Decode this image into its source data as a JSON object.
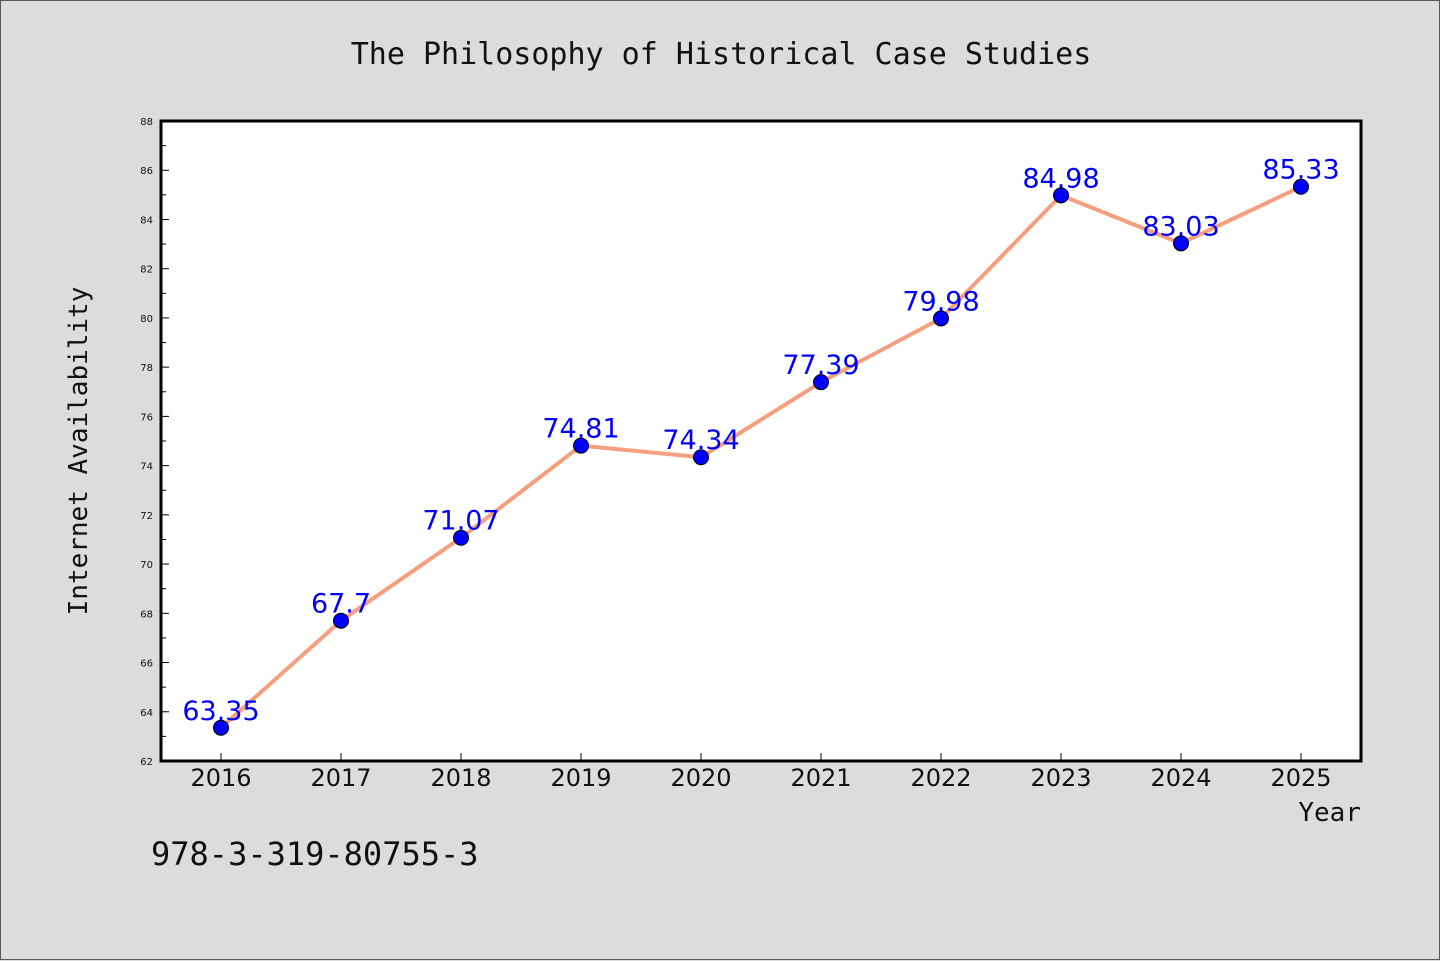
{
  "footer": {
    "isbn": "978-3-319-80755-3"
  },
  "colors": {
    "line": "#f4a07f",
    "marker": "#0000ff",
    "label": "#0000ff",
    "background": "#dcdcdc",
    "plot_bg": "#ffffff"
  },
  "chart_data": {
    "type": "line",
    "title": "The Philosophy of Historical Case Studies",
    "xlabel": "Year",
    "ylabel": "Internet Availability",
    "categories": [
      "2016",
      "2017",
      "2018",
      "2019",
      "2020",
      "2021",
      "2022",
      "2023",
      "2024",
      "2025"
    ],
    "series": [
      {
        "values": [
          63.35,
          67.7,
          71.07,
          74.81,
          74.34,
          77.39,
          79.98,
          84.98,
          83.03,
          85.33
        ],
        "labels": [
          "63.35",
          "67.7",
          "71.07",
          "74.81",
          "74.34",
          "77.39",
          "79.98",
          "84.98",
          "83.03",
          "85.33"
        ]
      }
    ],
    "ylim": [
      62,
      88
    ],
    "yticks": [
      62,
      64,
      66,
      68,
      70,
      72,
      74,
      76,
      78,
      80,
      82,
      84,
      86,
      88
    ],
    "ytick_labels": [
      "62",
      "64",
      "66",
      "68",
      "70",
      "72",
      "74",
      "76",
      "78",
      "80",
      "82",
      "84",
      "86",
      "88"
    ],
    "grid": false,
    "legend": "none"
  }
}
